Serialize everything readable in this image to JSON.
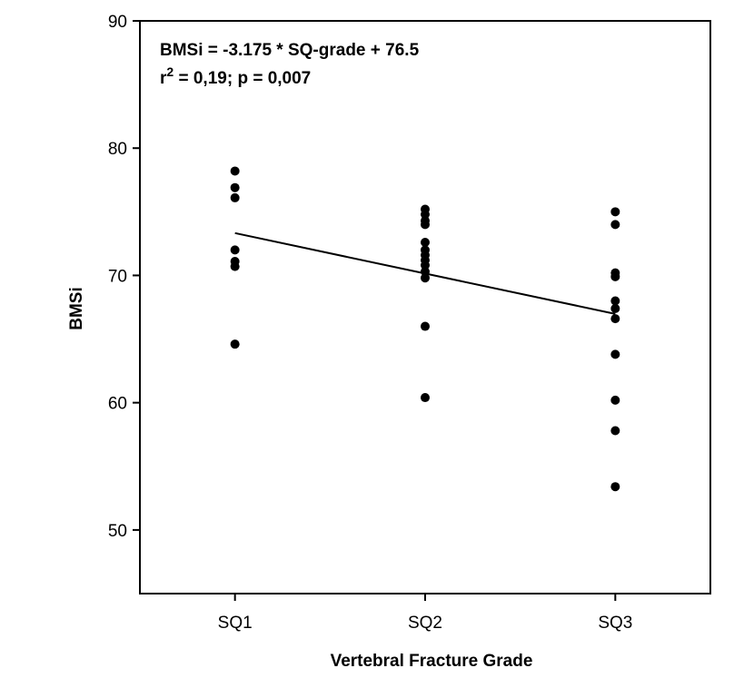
{
  "chart_data": {
    "type": "scatter",
    "title": "",
    "xlabel": "Vertebral  Fracture Grade",
    "ylabel": "BMSi",
    "categories": [
      "SQ1",
      "SQ2",
      "SQ3"
    ],
    "x_range": [
      0.5,
      3.5
    ],
    "ylim": [
      45,
      90
    ],
    "yticks": [
      50,
      60,
      70,
      80,
      90
    ],
    "grid": false,
    "series": [
      {
        "name": "SQ1",
        "x": 1,
        "values": [
          78.2,
          76.9,
          76.1,
          72.0,
          71.1,
          70.7,
          64.6
        ]
      },
      {
        "name": "SQ2",
        "x": 2,
        "values": [
          75.2,
          74.8,
          74.3,
          74.0,
          72.6,
          72.0,
          71.6,
          71.2,
          70.8,
          70.3,
          69.8,
          66.0,
          60.4
        ]
      },
      {
        "name": "SQ3",
        "x": 3,
        "values": [
          75.0,
          74.0,
          70.2,
          69.9,
          68.0,
          67.4,
          66.6,
          63.8,
          60.2,
          57.8,
          53.4
        ]
      }
    ],
    "regression": {
      "slope": -3.175,
      "intercept": 76.5,
      "x_start": 1,
      "x_end": 3
    },
    "annotations": {
      "equation": "BMSi = -3.175 * SQ-grade + 76.5",
      "r_base": "r",
      "r_exp": "2",
      "r_rest": " =  0,19; p = 0,007"
    }
  }
}
